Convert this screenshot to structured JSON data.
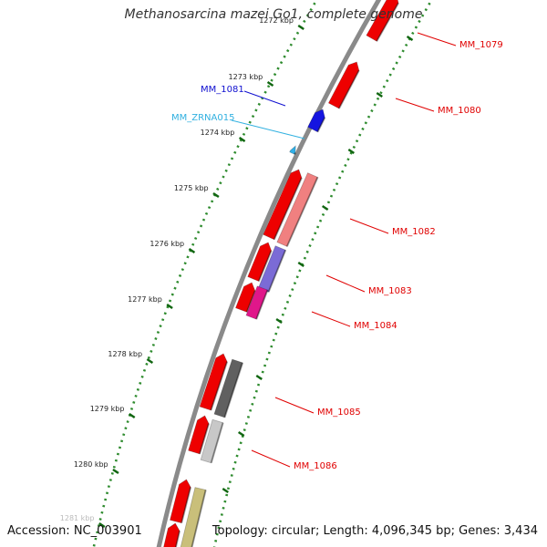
{
  "title": "Methanosarcina mazei Go1, complete genome",
  "accession": "Accession: NC_003901",
  "summary": "Topology: circular; Length: 4,096,345 bp; Genes: 3,434",
  "colors": {
    "backbone": "#808080",
    "ruler": "#2e8b2e",
    "label_red": "#e00000",
    "label_blue": "#1010d0",
    "label_cyan": "#30b0e0"
  },
  "ticks": [
    "1272 kbp",
    "1273 kbp",
    "1274 kbp",
    "1275 kbp",
    "1276 kbp",
    "1277 kbp",
    "1278 kbp",
    "1279 kbp",
    "1280 kbp",
    "1281 kbp"
  ],
  "genes": [
    {
      "name": "MM_1079",
      "color": "#e00000"
    },
    {
      "name": "MM_1080",
      "color": "#e00000"
    },
    {
      "name": "MM_1081",
      "color": "#1010d0"
    },
    {
      "name": "MM_ZRNA015",
      "color": "#30b0e0"
    },
    {
      "name": "MM_1082",
      "color": "#e00000"
    },
    {
      "name": "MM_1083",
      "color": "#e00000"
    },
    {
      "name": "MM_1084",
      "color": "#e00000"
    },
    {
      "name": "MM_1085",
      "color": "#e00000"
    },
    {
      "name": "MM_1086",
      "color": "#e00000"
    }
  ]
}
